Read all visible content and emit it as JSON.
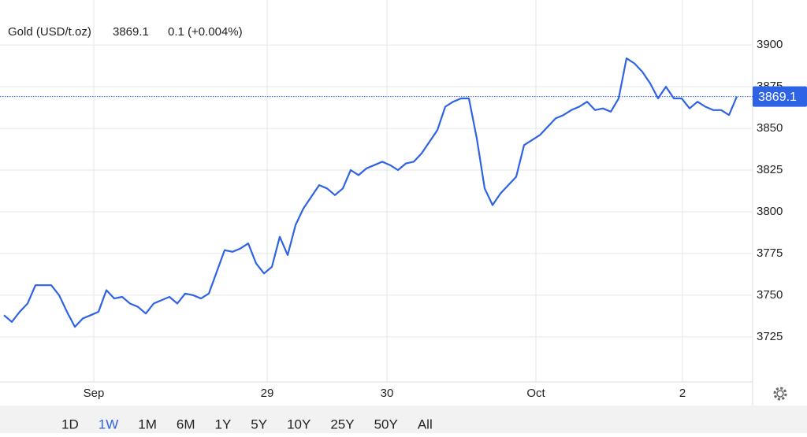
{
  "chart_data": {
    "type": "line",
    "series": [
      {
        "name": "Gold (USD/t.oz)",
        "color": "#2f63e6",
        "values": [
          3738,
          3734,
          3740,
          3745,
          3756,
          3756,
          3756,
          3750,
          3740,
          3731,
          3736,
          3738,
          3740,
          3753,
          3748,
          3749,
          3745,
          3743,
          3739,
          3745,
          3747,
          3749,
          3745,
          3751,
          3750,
          3748,
          3751,
          3764,
          3777,
          3776,
          3778,
          3781,
          3769,
          3763,
          3767,
          3785,
          3774,
          3792,
          3802,
          3809,
          3816,
          3814,
          3810,
          3814,
          3825,
          3822,
          3826,
          3828,
          3830,
          3828,
          3825,
          3829,
          3830,
          3835,
          3842,
          3849,
          3863,
          3866,
          3868,
          3868,
          3844,
          3814,
          3804,
          3811,
          3816,
          3821,
          3840,
          3843,
          3846,
          3851,
          3856,
          3858,
          3861,
          3863,
          3866,
          3861,
          3862,
          3860,
          3868,
          3892,
          3889,
          3884,
          3877,
          3868,
          3875,
          3868,
          3868,
          3862,
          3866,
          3863,
          3861,
          3861,
          3858,
          3869.1
        ]
      }
    ],
    "price": 3869.1,
    "change": "0.1 (+0.004%)",
    "change_color": "#3cb53c",
    "xlim": [
      0,
      95
    ],
    "xticks": [
      {
        "value": 11.4,
        "label": "Sep"
      },
      {
        "value": 33.4,
        "label": "29"
      },
      {
        "value": 48.6,
        "label": "30"
      },
      {
        "value": 67.5,
        "label": "Oct"
      },
      {
        "value": 86.1,
        "label": "2"
      }
    ],
    "ylim": [
      3698,
      3927
    ],
    "yticks": [
      3725,
      3750,
      3775,
      3800,
      3825,
      3850,
      3875,
      3900
    ],
    "grid": true,
    "ranges": [
      "1D",
      "1W",
      "1M",
      "6M",
      "1Y",
      "5Y",
      "10Y",
      "25Y",
      "50Y",
      "All"
    ],
    "selected_range": 1
  }
}
